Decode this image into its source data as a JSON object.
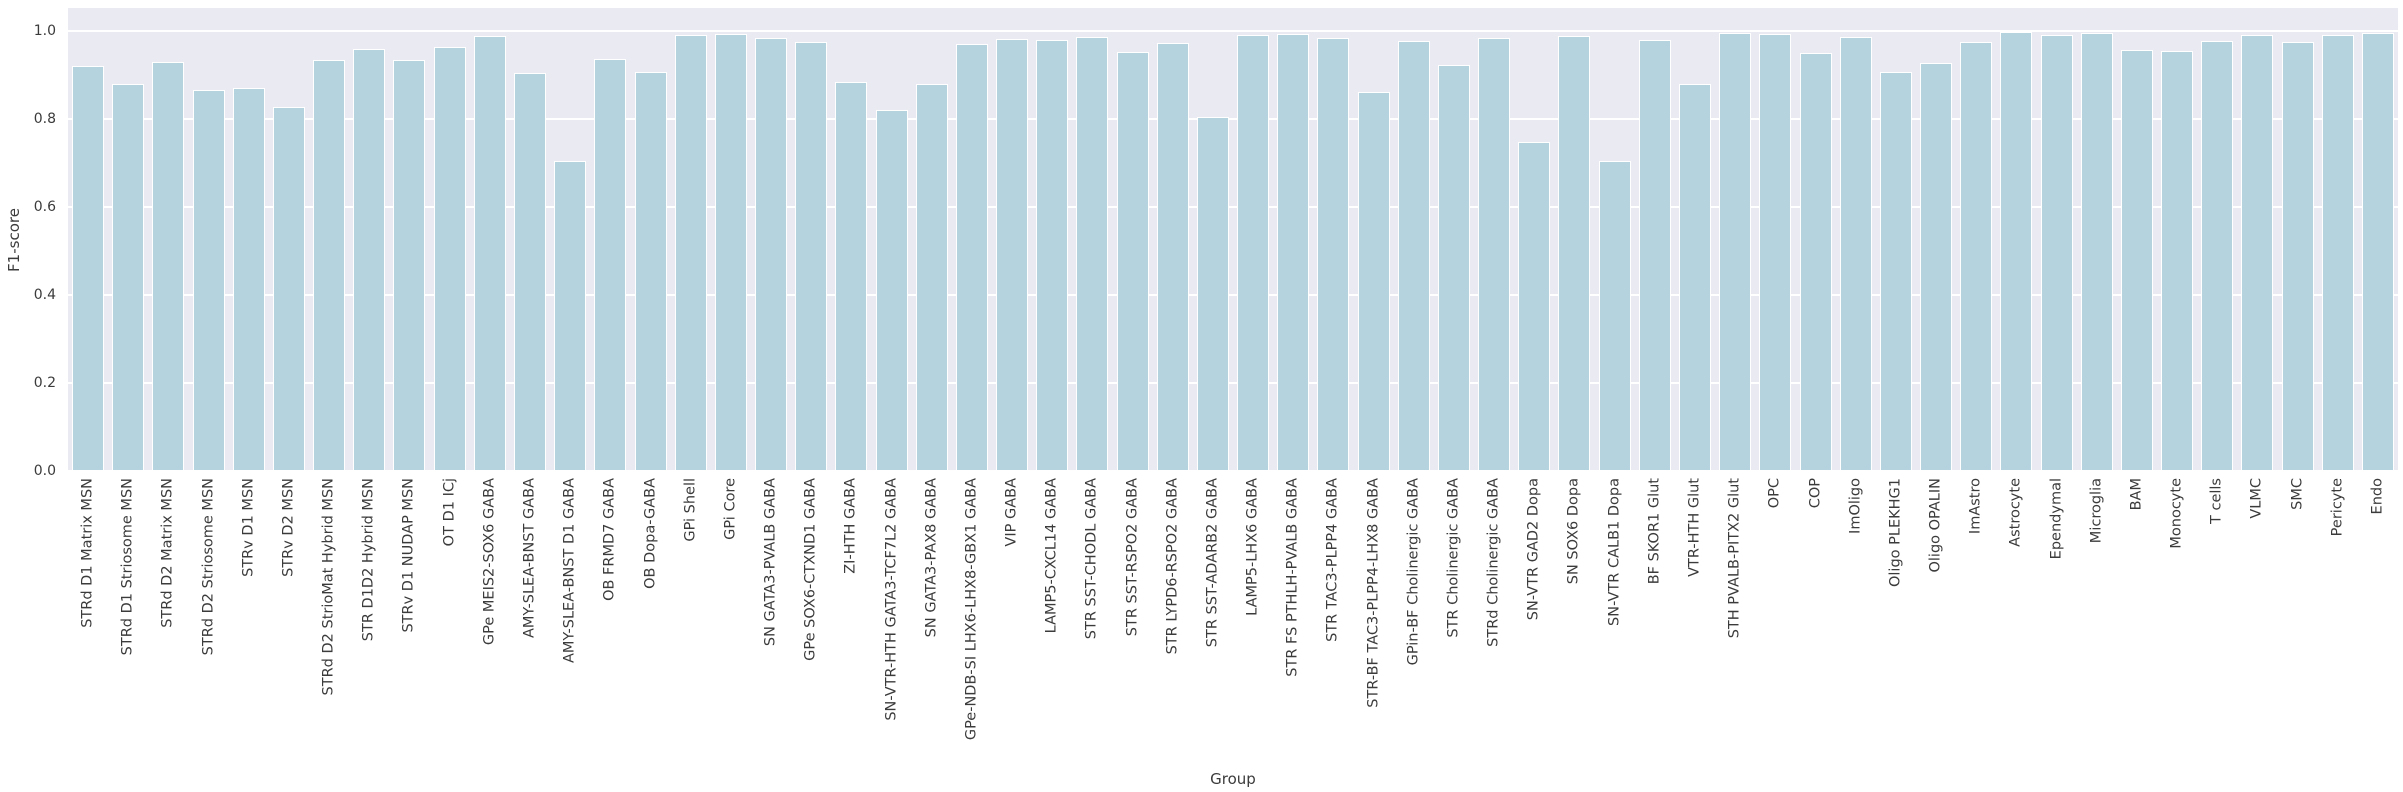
{
  "figure": {
    "plot_bg_color": "#eaeaf2",
    "grid_color": "#ffffff",
    "bar_color": "#b5d3df",
    "text_color": "#3b3b3b",
    "yticks": [
      0.0,
      0.2,
      0.4,
      0.6,
      0.8,
      1.0
    ],
    "ytick_labels": [
      "0.0",
      "0.2",
      "0.4",
      "0.6",
      "0.8",
      "1.0"
    ]
  },
  "chart_data": {
    "type": "bar",
    "title": "",
    "xlabel": "Group",
    "ylabel": "F1-score",
    "ylim": [
      0.0,
      1.05
    ],
    "grid": true,
    "legend": null,
    "categories": [
      "STRd D1 Matrix MSN",
      "STRd D1 Striosome MSN",
      "STRd D2 Matrix MSN",
      "STRd D2 Striosome MSN",
      "STRv D1 MSN",
      "STRv D2 MSN",
      "STRd D2 StrioMat Hybrid MSN",
      "STR D1D2 Hybrid MSN",
      "STRv D1 NUDAP MSN",
      "OT D1 ICj",
      "GPe MEIS2-SOX6 GABA",
      "AMY-SLEA-BNST GABA",
      "AMY-SLEA-BNST D1 GABA",
      "OB FRMD7 GABA",
      "OB Dopa-GABA",
      "GPi Shell",
      "GPi Core",
      "SN GATA3-PVALB GABA",
      "GPe SOX6-CTXND1 GABA",
      "ZI-HTH GABA",
      "SN-VTR-HTH GATA3-TCF7L2 GABA",
      "SN GATA3-PAX8 GABA",
      "GPe-NDB-SI LHX6-LHX8-GBX1 GABA",
      "VIP GABA",
      "LAMP5-CXCL14 GABA",
      "STR SST-CHODL GABA",
      "STR SST-RSPO2 GABA",
      "STR LYPD6-RSPO2 GABA",
      "STR SST-ADARB2 GABA",
      "LAMP5-LHX6 GABA",
      "STR FS PTHLH-PVALB GABA",
      "STR TAC3-PLPP4 GABA",
      "STR-BF TAC3-PLPP4-LHX8 GABA",
      "GPin-BF Cholinergic GABA",
      "STR Cholinergic GABA",
      "STRd Cholinergic GABA",
      "SN-VTR GAD2 Dopa",
      "SN SOX6 Dopa",
      "SN-VTR CALB1 Dopa",
      "BF SKOR1 Glut",
      "VTR-HTH Glut",
      "STH PVALB-PITX2 Glut",
      "OPC",
      "COP",
      "ImOligo",
      "Oligo PLEKHG1",
      "Oligo OPALIN",
      "ImAstro",
      "Astrocyte",
      "Ependymal",
      "Microglia",
      "BAM",
      "Monocyte",
      "T cells",
      "VLMC",
      "SMC",
      "Pericyte",
      "Endo"
    ],
    "values": [
      0.92,
      0.88,
      0.93,
      0.865,
      0.87,
      0.828,
      0.935,
      0.96,
      0.933,
      0.964,
      0.989,
      0.905,
      0.705,
      0.937,
      0.907,
      0.99,
      0.993,
      0.985,
      0.975,
      0.884,
      0.82,
      0.879,
      0.97,
      0.982,
      0.98,
      0.986,
      0.952,
      0.973,
      0.805,
      0.99,
      0.993,
      0.983,
      0.862,
      0.977,
      0.923,
      0.983,
      0.748,
      0.989,
      0.704,
      0.98,
      0.88,
      0.996,
      0.993,
      0.95,
      0.986,
      0.907,
      0.927,
      0.975,
      0.998,
      0.991,
      0.995,
      0.957,
      0.955,
      0.977,
      0.991,
      0.975,
      0.991,
      0.995
    ]
  }
}
